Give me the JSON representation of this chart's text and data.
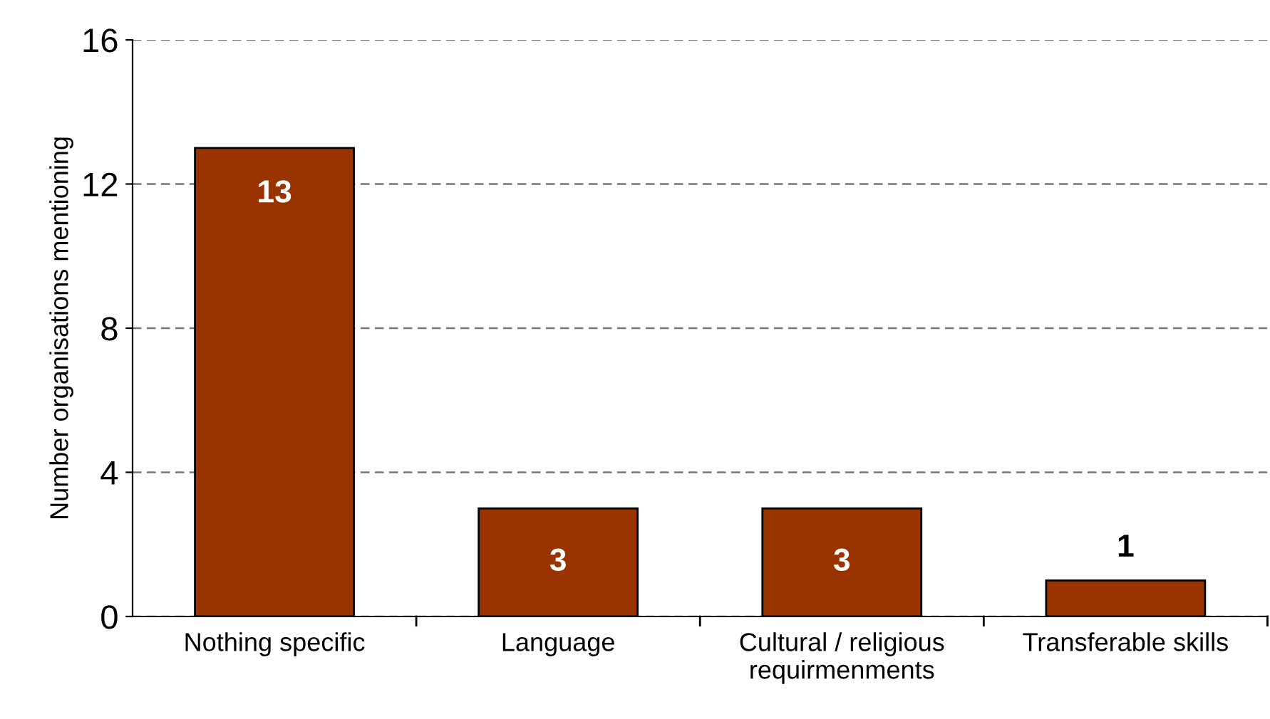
{
  "chart_data": {
    "type": "bar",
    "ylabel": "Number organisations mentioning",
    "categories": [
      "Nothing specific",
      "Language",
      "Cultural / religious\nrequirmenments",
      "Transferable skills"
    ],
    "values": [
      13,
      3,
      3,
      1
    ],
    "color": "#993300",
    "ylim": [
      0,
      16
    ],
    "yticks": [
      0,
      4,
      8,
      12,
      16
    ],
    "grid": "y",
    "line_style": "dashed",
    "data_labels": true
  }
}
